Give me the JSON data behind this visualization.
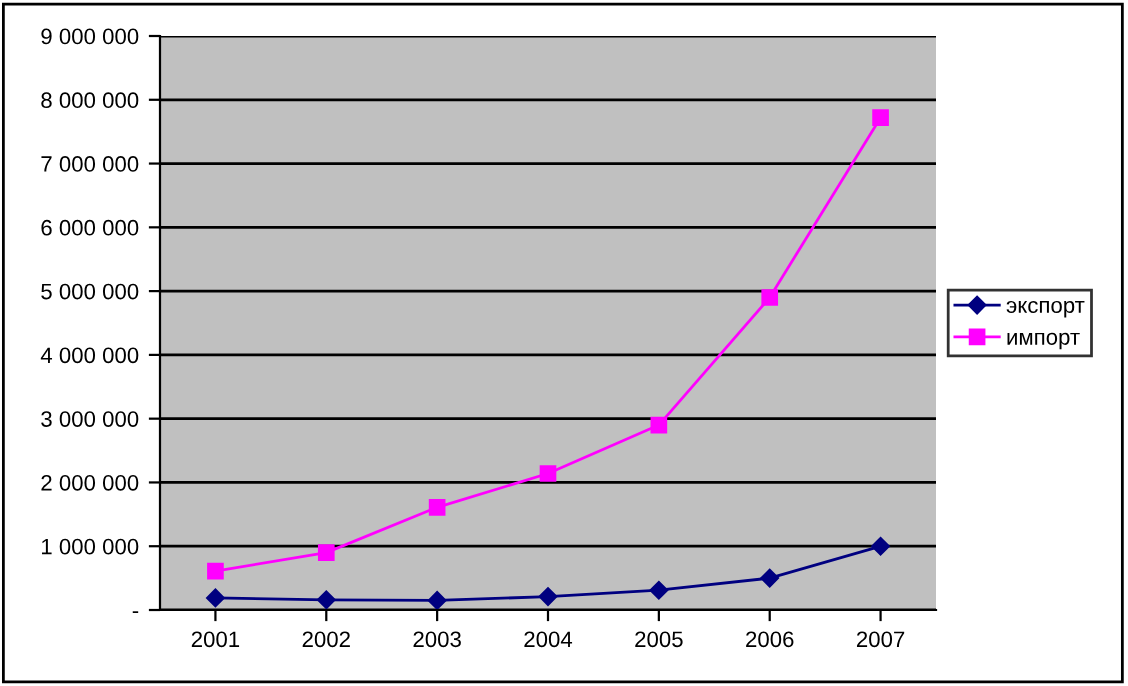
{
  "chart_data": {
    "type": "line",
    "categories": [
      "2001",
      "2002",
      "2003",
      "2004",
      "2005",
      "2006",
      "2007"
    ],
    "series": [
      {
        "name": "экспорт",
        "color": "#000080",
        "marker": "diamond",
        "values": [
          190000,
          160000,
          150000,
          210000,
          310000,
          500000,
          1000000
        ]
      },
      {
        "name": "импорт",
        "color": "#ff00ff",
        "marker": "square",
        "values": [
          610000,
          900000,
          1610000,
          2140000,
          2900000,
          4900000,
          7720000
        ]
      }
    ],
    "ylim": [
      0,
      9000000
    ],
    "yticks": [
      {
        "value": 0,
        "label": "-"
      },
      {
        "value": 1000000,
        "label": "1 000 000"
      },
      {
        "value": 2000000,
        "label": "2 000 000"
      },
      {
        "value": 3000000,
        "label": "3 000 000"
      },
      {
        "value": 4000000,
        "label": "4 000 000"
      },
      {
        "value": 5000000,
        "label": "5 000 000"
      },
      {
        "value": 6000000,
        "label": "6 000 000"
      },
      {
        "value": 7000000,
        "label": "7 000 000"
      },
      {
        "value": 8000000,
        "label": "8 000 000"
      },
      {
        "value": 9000000,
        "label": "9 000 000"
      }
    ],
    "grid": "y",
    "legend": "right",
    "line_style": "solid"
  }
}
